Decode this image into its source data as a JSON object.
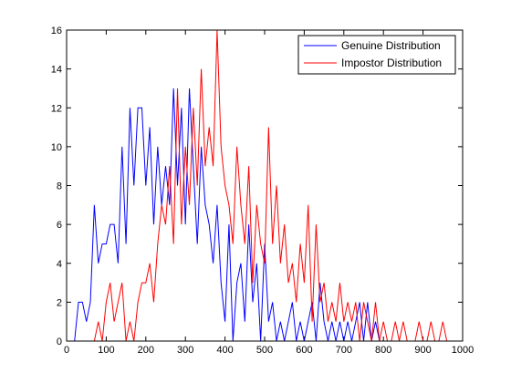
{
  "chart_data": {
    "type": "line",
    "series": [
      {
        "name": "Genuine Distribution",
        "color": "#0000ff",
        "x": [
          20,
          30,
          40,
          50,
          60,
          70,
          80,
          90,
          100,
          110,
          120,
          130,
          140,
          150,
          160,
          170,
          180,
          190,
          200,
          210,
          220,
          230,
          240,
          250,
          260,
          270,
          280,
          290,
          300,
          310,
          320,
          330,
          340,
          350,
          360,
          370,
          380,
          390,
          400,
          410,
          420,
          430,
          440,
          450,
          460,
          470,
          480,
          490,
          500,
          510,
          520,
          530,
          540,
          550,
          560,
          570,
          580,
          590,
          600,
          610,
          620,
          630,
          640,
          650,
          660,
          670,
          680,
          690,
          700,
          710,
          720,
          730,
          740,
          750,
          760,
          770,
          780,
          790
        ],
        "values": [
          0,
          2,
          2,
          1,
          2,
          7,
          4,
          5,
          5,
          6,
          6,
          4,
          10,
          5,
          12,
          8,
          12,
          12,
          8,
          11,
          6,
          10,
          7,
          9,
          7,
          13,
          8,
          12,
          6,
          13,
          9,
          5,
          10,
          7,
          6,
          4,
          7,
          3,
          1,
          6,
          0,
          3,
          4,
          1,
          6,
          2,
          4,
          0,
          5,
          1,
          2,
          0,
          1,
          0,
          1,
          2,
          0,
          1,
          0,
          1,
          2,
          0,
          3,
          1,
          0,
          1,
          0,
          1,
          0,
          1,
          0,
          1,
          2,
          0,
          2,
          0,
          1,
          0
        ]
      },
      {
        "name": "Impostor Distribution",
        "color": "#ff0000",
        "x": [
          60,
          70,
          80,
          90,
          100,
          110,
          120,
          130,
          140,
          150,
          160,
          170,
          180,
          190,
          200,
          210,
          220,
          230,
          240,
          250,
          260,
          270,
          280,
          290,
          300,
          310,
          320,
          330,
          340,
          350,
          360,
          370,
          380,
          390,
          400,
          410,
          420,
          430,
          440,
          450,
          460,
          470,
          480,
          490,
          500,
          510,
          520,
          530,
          540,
          550,
          560,
          570,
          580,
          590,
          600,
          610,
          620,
          630,
          640,
          650,
          660,
          670,
          680,
          690,
          700,
          710,
          720,
          730,
          740,
          750,
          760,
          770,
          780,
          790,
          800,
          810,
          820,
          830,
          840,
          850,
          860,
          870,
          880,
          890,
          900,
          910,
          920,
          930,
          940,
          950,
          960,
          970
        ],
        "values": [
          0,
          0,
          1,
          0,
          2,
          3,
          1,
          2,
          3,
          0,
          1,
          0,
          2,
          3,
          3,
          4,
          2,
          5,
          7,
          6,
          9,
          5,
          13,
          6,
          10,
          7,
          12,
          8,
          14,
          9,
          11,
          9,
          16,
          10,
          8,
          7,
          5,
          10,
          7,
          5,
          9,
          3,
          7,
          5,
          4,
          11,
          5,
          8,
          4,
          6,
          3,
          4,
          2,
          5,
          3,
          7,
          1,
          6,
          2,
          3,
          1,
          2,
          1,
          3,
          1,
          2,
          1,
          2,
          0,
          2,
          1,
          0,
          2,
          0,
          1,
          0,
          0,
          1,
          0,
          1,
          0,
          0,
          0,
          1,
          0,
          0,
          1,
          0,
          0,
          1,
          0,
          0
        ]
      }
    ],
    "xlim": [
      0,
      1000
    ],
    "xticks": [
      0,
      100,
      200,
      300,
      400,
      500,
      600,
      700,
      800,
      900,
      1000
    ],
    "ylim": [
      0,
      16
    ],
    "yticks": [
      0,
      2,
      4,
      6,
      8,
      10,
      12,
      14,
      16
    ],
    "legend": "northeast"
  }
}
